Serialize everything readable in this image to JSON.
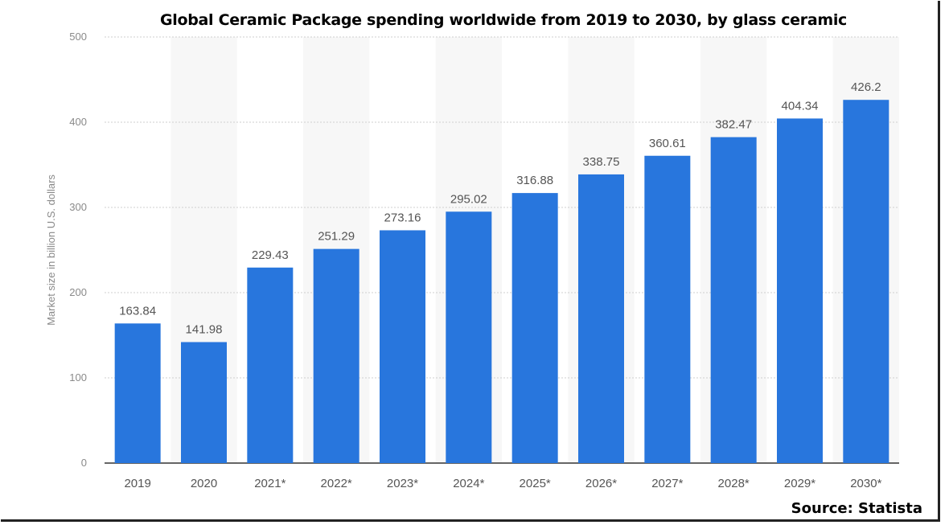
{
  "chart_data": {
    "type": "bar",
    "title": "Global Ceramic Package spending worldwide from 2019 to 2030, by glass ceramic",
    "xlabel": "",
    "ylabel": "Market size in billion U.S. dollars",
    "categories": [
      "2019",
      "2020",
      "2021*",
      "2022*",
      "2023*",
      "2024*",
      "2025*",
      "2026*",
      "2027*",
      "2028*",
      "2029*",
      "2030*"
    ],
    "values": [
      163.84,
      141.98,
      229.43,
      251.29,
      273.16,
      295.02,
      316.88,
      338.75,
      360.61,
      382.47,
      404.34,
      426.2
    ],
    "data_labels": [
      "163.84",
      "141.98",
      "229.43",
      "251.29",
      "273.16",
      "295.02",
      "316.88",
      "338.75",
      "360.61",
      "382.47",
      "404.34",
      "426.2"
    ],
    "yticks": [
      0,
      100,
      200,
      300,
      400,
      500
    ],
    "ylim": [
      0,
      500
    ],
    "grid": true,
    "legend": "none",
    "bar_color": "#2876dd",
    "band_color": "#f7f7f7"
  },
  "source_text": "Source: Statista"
}
